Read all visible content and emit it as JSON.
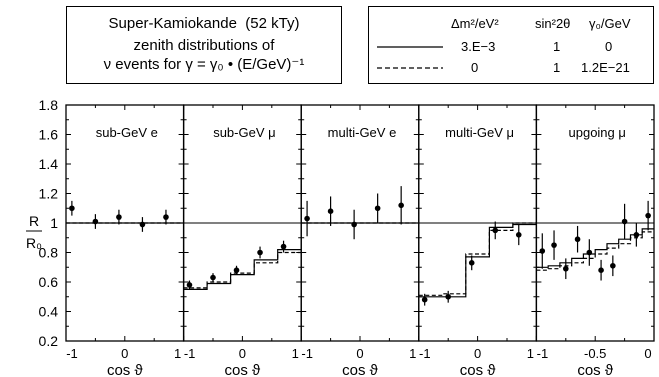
{
  "header": {
    "title": "Super-Kamiokande",
    "exposure": "(52 kTy)",
    "line2": "zenith distributions of",
    "line3": "ν events for γ = γ₀ • (E/GeV)⁻¹"
  },
  "legend": {
    "headers": [
      "Δm²/eV²",
      "sin²2θ",
      "γ₀/GeV"
    ],
    "rows": [
      {
        "style": "solid",
        "dm2": "3.E−3",
        "sin2": "1",
        "gamma0": "0"
      },
      {
        "style": "dashed",
        "dm2": "0",
        "sin2": "1",
        "gamma0": "1.2E−21"
      }
    ]
  },
  "axes": {
    "ylabel": "R/R₀",
    "xlabel": "cos ϑ",
    "yticks": [
      "0.2",
      "0.4",
      "0.6",
      "0.8",
      "1",
      "1.2",
      "1.4",
      "1.6",
      "1.8"
    ]
  },
  "chart_data": {
    "type": "scatter",
    "ylim": [
      0.2,
      1.8
    ],
    "reference_line": 1.0,
    "panels": [
      {
        "label": "sub-GeV  e",
        "xlim": [
          -1,
          1
        ],
        "xticks": [
          "-1",
          "0",
          "1"
        ],
        "points": [
          {
            "x": -0.9,
            "y": 1.1,
            "err": 0.05
          },
          {
            "x": -0.5,
            "y": 1.01,
            "err": 0.05
          },
          {
            "x": -0.1,
            "y": 1.04,
            "err": 0.05
          },
          {
            "x": 0.3,
            "y": 0.99,
            "err": 0.05
          },
          {
            "x": 0.7,
            "y": 1.04,
            "err": 0.05
          }
        ],
        "solid": [
          1.0,
          1.0,
          1.0,
          1.0,
          1.0
        ],
        "dashed": [
          1.0,
          1.0,
          1.0,
          1.0,
          1.0
        ]
      },
      {
        "label": "sub-GeV  μ",
        "xlim": [
          -1,
          1
        ],
        "xticks": [
          "-1",
          "0",
          "1"
        ],
        "points": [
          {
            "x": -0.9,
            "y": 0.58,
            "err": 0.03
          },
          {
            "x": -0.5,
            "y": 0.63,
            "err": 0.03
          },
          {
            "x": -0.1,
            "y": 0.68,
            "err": 0.03
          },
          {
            "x": 0.3,
            "y": 0.8,
            "err": 0.04
          },
          {
            "x": 0.7,
            "y": 0.84,
            "err": 0.04
          }
        ],
        "solid": [
          0.55,
          0.59,
          0.65,
          0.75,
          0.82
        ],
        "dashed": [
          0.56,
          0.6,
          0.66,
          0.73,
          0.8
        ]
      },
      {
        "label": "multi-GeV  e",
        "xlim": [
          -1,
          1
        ],
        "xticks": [
          "-1",
          "0",
          "1"
        ],
        "points": [
          {
            "x": -0.9,
            "y": 1.03,
            "err": 0.12
          },
          {
            "x": -0.5,
            "y": 1.08,
            "err": 0.1
          },
          {
            "x": -0.1,
            "y": 0.99,
            "err": 0.1
          },
          {
            "x": 0.3,
            "y": 1.1,
            "err": 0.1
          },
          {
            "x": 0.7,
            "y": 1.12,
            "err": 0.13
          }
        ],
        "solid": [
          1.0,
          1.0,
          1.0,
          1.0,
          1.0
        ],
        "dashed": [
          1.0,
          1.0,
          1.0,
          1.0,
          1.0
        ]
      },
      {
        "label": "multi-GeV  μ",
        "xlim": [
          -1,
          1
        ],
        "xticks": [
          "-1",
          "0",
          "1"
        ],
        "points": [
          {
            "x": -0.9,
            "y": 0.48,
            "err": 0.04
          },
          {
            "x": -0.5,
            "y": 0.5,
            "err": 0.04
          },
          {
            "x": -0.1,
            "y": 0.73,
            "err": 0.05
          },
          {
            "x": 0.3,
            "y": 0.95,
            "err": 0.06
          },
          {
            "x": 0.7,
            "y": 0.92,
            "err": 0.07
          }
        ],
        "solid": [
          0.5,
          0.5,
          0.77,
          0.97,
          0.99
        ],
        "dashed": [
          0.51,
          0.52,
          0.79,
          0.95,
          1.0
        ]
      },
      {
        "label": "upgoing  μ",
        "xlim": [
          -1,
          0
        ],
        "xticks": [
          "-1",
          "-0.5",
          "0"
        ],
        "points": [
          {
            "x": -0.95,
            "y": 0.81,
            "err": 0.12
          },
          {
            "x": -0.85,
            "y": 0.85,
            "err": 0.1
          },
          {
            "x": -0.75,
            "y": 0.69,
            "err": 0.07
          },
          {
            "x": -0.65,
            "y": 0.89,
            "err": 0.09
          },
          {
            "x": -0.55,
            "y": 0.8,
            "err": 0.09
          },
          {
            "x": -0.45,
            "y": 0.68,
            "err": 0.07
          },
          {
            "x": -0.35,
            "y": 0.71,
            "err": 0.07
          },
          {
            "x": -0.25,
            "y": 1.01,
            "err": 0.12
          },
          {
            "x": -0.15,
            "y": 0.92,
            "err": 0.08
          },
          {
            "x": -0.05,
            "y": 1.05,
            "err": 0.1
          }
        ],
        "solid": [
          0.7,
          0.71,
          0.73,
          0.76,
          0.79,
          0.82,
          0.86,
          0.89,
          0.92,
          0.96
        ],
        "dashed": [
          0.68,
          0.69,
          0.71,
          0.73,
          0.76,
          0.79,
          0.83,
          0.86,
          0.9,
          0.94
        ]
      }
    ]
  }
}
